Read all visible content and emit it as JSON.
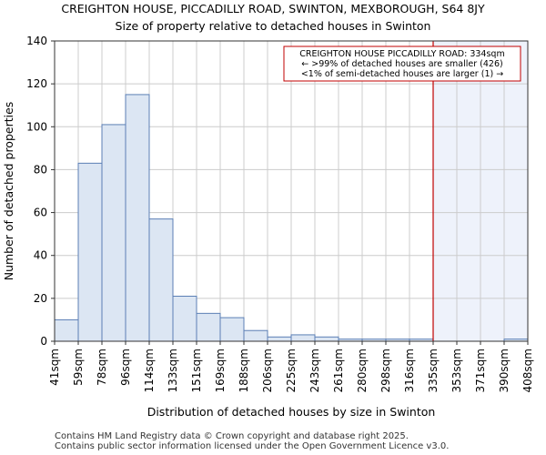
{
  "chart_data": {
    "type": "bar",
    "title": "CREIGHTON HOUSE, PICCADILLY ROAD, SWINTON, MEXBOROUGH, S64 8JY",
    "subtitle": "Size of property relative to detached houses in Swinton",
    "xlabel": "Distribution of detached houses by size in Swinton",
    "ylabel": "Number of detached properties",
    "ylim": [
      0,
      140
    ],
    "yticks": [
      0,
      20,
      40,
      60,
      80,
      100,
      120,
      140
    ],
    "bin_edges": [
      "41sqm",
      "59sqm",
      "78sqm",
      "96sqm",
      "114sqm",
      "133sqm",
      "151sqm",
      "169sqm",
      "188sqm",
      "206sqm",
      "225sqm",
      "243sqm",
      "261sqm",
      "280sqm",
      "298sqm",
      "316sqm",
      "335sqm",
      "353sqm",
      "371sqm",
      "390sqm",
      "408sqm"
    ],
    "values": [
      10,
      83,
      101,
      115,
      57,
      21,
      13,
      11,
      5,
      2,
      3,
      2,
      1,
      1,
      1,
      1,
      0,
      0,
      0,
      1
    ],
    "marker": {
      "label": "CREIGHTON HOUSE PICCADILLY ROAD: 334sqm",
      "bin_position": 16,
      "color": "#c00000"
    },
    "annotation_lines": [
      "CREIGHTON HOUSE PICCADILLY ROAD: 334sqm",
      "← >99% of detached houses are smaller (426)",
      "<1% of semi-detached houses are larger (1) →"
    ],
    "bar_fill": "#dce6f3",
    "bar_stroke": "#5b7fb5",
    "shade_fill": "#eef2fb",
    "grid": true
  },
  "footer": {
    "line1": "Contains HM Land Registry data © Crown copyright and database right 2025.",
    "line2": "Contains public sector information licensed under the Open Government Licence v3.0."
  }
}
